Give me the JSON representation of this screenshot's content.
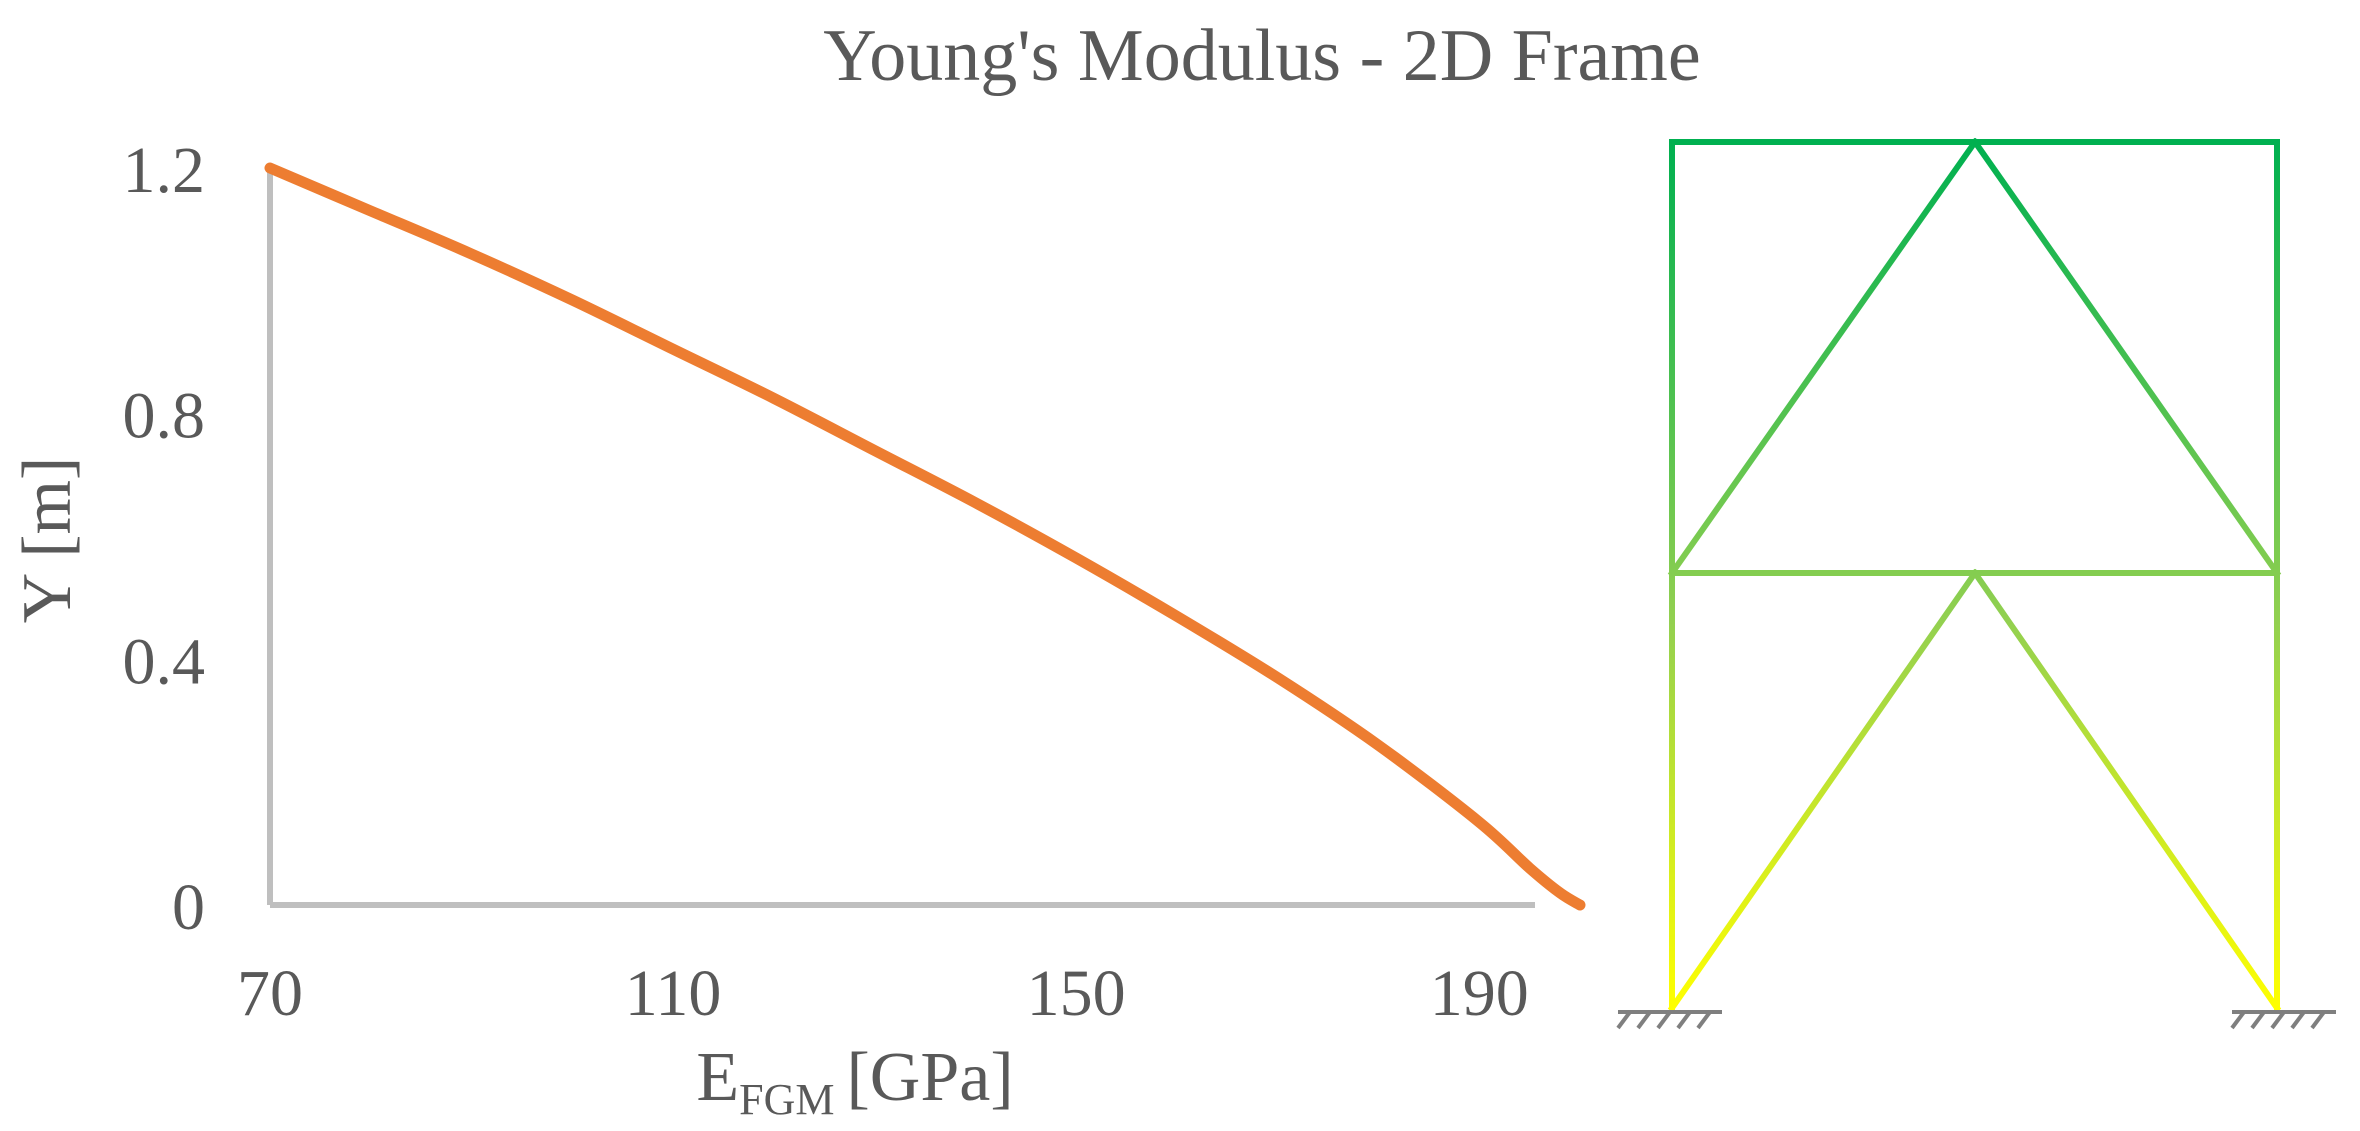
{
  "title": "Young's Modulus - 2D Frame",
  "chart_data": {
    "type": "line",
    "title": "Young's Modulus - 2D Frame",
    "xlabel_main": "E",
    "xlabel_sub": "FGM",
    "xlabel_unit": "[GPa]",
    "ylabel": "Y [m]",
    "xlim": [
      70,
      200
    ],
    "ylim": [
      0,
      1.2
    ],
    "xticks": [
      "70",
      "110",
      "150",
      "190"
    ],
    "yticks": [
      "0",
      "0.4",
      "0.8",
      "1.2"
    ],
    "grid": false,
    "legend": "none",
    "series": [
      {
        "color": "#ED7D31",
        "x": [
          70,
          80,
          90,
          100,
          110,
          120,
          130,
          140,
          150,
          160,
          170,
          180,
          190,
          195,
          198,
          200
        ],
        "y": [
          1.2,
          1.13,
          1.06,
          0.985,
          0.905,
          0.825,
          0.74,
          0.655,
          0.565,
          0.47,
          0.37,
          0.26,
          0.135,
          0.06,
          0.02,
          0.0
        ]
      }
    ]
  },
  "frame_diagram": {
    "description_color_top": "#00B050",
    "color_mid": "#92D050",
    "color_bottom": "#FFFF00",
    "support_color": "#7F7F7F"
  }
}
